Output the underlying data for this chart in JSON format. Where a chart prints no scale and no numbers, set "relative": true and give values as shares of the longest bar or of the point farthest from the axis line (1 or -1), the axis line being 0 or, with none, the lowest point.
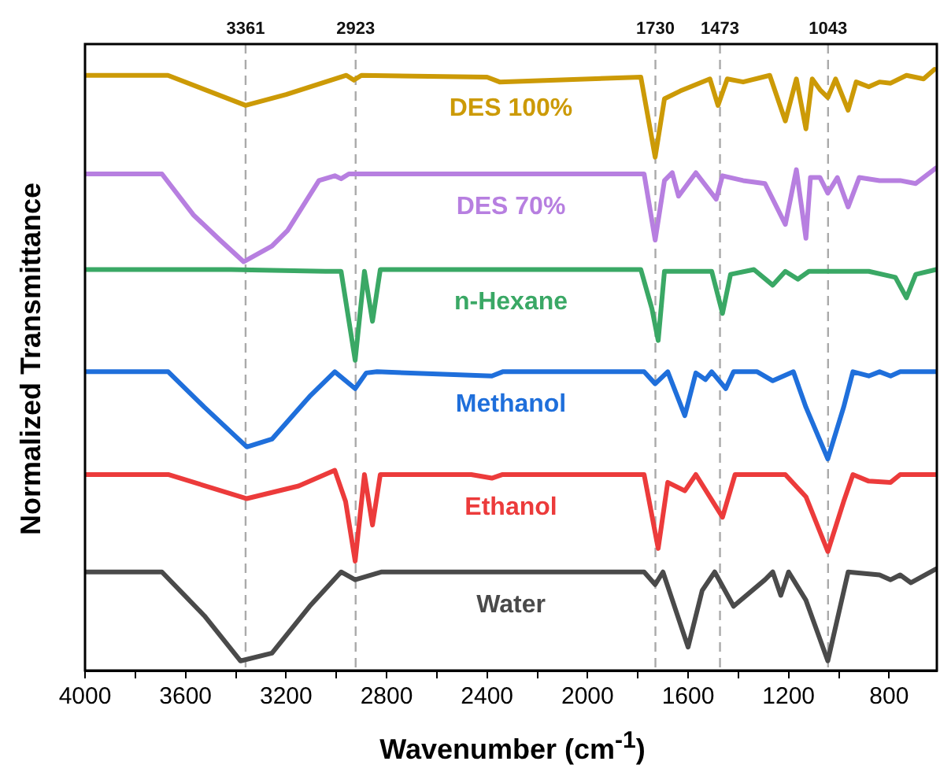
{
  "chart_data": {
    "type": "line",
    "relative": true,
    "xlabel": "Wavenumber (cm$^{-1}$)",
    "ylabel": "Normalized Transmittance",
    "xlim": [
      4000,
      610
    ],
    "xticks": [
      4000,
      {
        "value": 3800,
        "label": null
      },
      3600,
      {
        "value": 3400,
        "label": null
      },
      3200,
      {
        "value": 3000,
        "label": null
      },
      2800,
      {
        "value": 2600,
        "label": null
      },
      2400,
      {
        "value": 2200,
        "label": null
      },
      2000,
      {
        "value": 1800,
        "label": null
      },
      1600,
      {
        "value": 1400,
        "label": null
      },
      1200,
      {
        "value": 1000,
        "label": null
      },
      800
    ],
    "grid": false,
    "legend": false,
    "marker": "none",
    "line_style": "solid",
    "ref_lines": [
      {
        "axis": "x",
        "value": 3361,
        "label": "3361",
        "color": "#aaaaaa",
        "line_style": "dashed"
      },
      {
        "axis": "x",
        "value": 2923,
        "label": "2923",
        "color": "#aaaaaa",
        "line_style": "dashed"
      },
      {
        "axis": "x",
        "value": 1730,
        "label": "1730",
        "color": "#aaaaaa",
        "line_style": "dashed"
      },
      {
        "axis": "x",
        "value": 1473,
        "label": "1473",
        "color": "#aaaaaa",
        "line_style": "dashed"
      },
      {
        "axis": "x",
        "value": 1043,
        "label": "1043",
        "color": "#aaaaaa",
        "line_style": "dashed"
      }
    ],
    "series": [
      {
        "name": "DES 100%",
        "color": "#cc9a06",
        "x": [
          4000,
          3670,
          3361,
          3200,
          2960,
          2930,
          2900,
          2400,
          2350,
          1788,
          1731,
          1694,
          1631,
          1513,
          1481,
          1444,
          1381,
          1275,
          1213,
          1169,
          1131,
          1106,
          1075,
          1044,
          1013,
          963,
          931,
          881,
          838,
          794,
          731,
          663,
          619
        ],
        "values": [
          0.99,
          0.99,
          0.94,
          0.958,
          0.99,
          0.982,
          0.99,
          0.987,
          0.979,
          0.987,
          0.854,
          0.951,
          0.964,
          0.984,
          0.94,
          0.984,
          0.979,
          0.99,
          0.914,
          0.984,
          0.901,
          0.984,
          0.966,
          0.953,
          0.984,
          0.932,
          0.979,
          0.971,
          0.979,
          0.977,
          0.99,
          0.984,
          1.0
        ]
      },
      {
        "name": "DES 70%",
        "color": "#b77fe0",
        "x": [
          4000,
          3694,
          3569,
          3463,
          3369,
          3256,
          3194,
          3069,
          3006,
          2981,
          2950,
          1775,
          1731,
          1694,
          1663,
          1638,
          1569,
          1488,
          1463,
          1381,
          1294,
          1213,
          1169,
          1131,
          1113,
          1075,
          1044,
          1006,
          963,
          919,
          838,
          756,
          694,
          613
        ],
        "values": [
          0.826,
          0.826,
          0.758,
          0.716,
          0.68,
          0.706,
          0.732,
          0.815,
          0.823,
          0.818,
          0.826,
          0.826,
          0.716,
          0.815,
          0.828,
          0.789,
          0.828,
          0.784,
          0.823,
          0.815,
          0.81,
          0.742,
          0.833,
          0.719,
          0.82,
          0.82,
          0.794,
          0.82,
          0.771,
          0.82,
          0.815,
          0.815,
          0.81,
          0.836
        ]
      },
      {
        "name": "n-Hexane",
        "color": "#3aa865",
        "x": [
          4000,
          3419,
          3044,
          2981,
          2925,
          2888,
          2856,
          2825,
          1788,
          1744,
          1719,
          1694,
          1506,
          1463,
          1431,
          1338,
          1263,
          1213,
          1163,
          1119,
          1006,
          881,
          775,
          731,
          694,
          613
        ],
        "values": [
          0.667,
          0.667,
          0.664,
          0.664,
          0.516,
          0.664,
          0.581,
          0.667,
          0.667,
          0.602,
          0.549,
          0.664,
          0.664,
          0.594,
          0.659,
          0.667,
          0.641,
          0.664,
          0.651,
          0.664,
          0.664,
          0.664,
          0.654,
          0.62,
          0.659,
          0.667
        ]
      },
      {
        "name": "Methanol",
        "color": "#1f6fdb",
        "x": [
          4000,
          3669,
          3525,
          3356,
          3256,
          3106,
          3006,
          2925,
          2881,
          2838,
          2381,
          2338,
          1775,
          1731,
          1681,
          1613,
          1569,
          1531,
          1506,
          1450,
          1419,
          1325,
          1263,
          1181,
          1131,
          1044,
          981,
          944,
          881,
          838,
          794,
          756,
          613
        ],
        "values": [
          0.497,
          0.497,
          0.438,
          0.372,
          0.385,
          0.456,
          0.497,
          0.469,
          0.495,
          0.497,
          0.49,
          0.497,
          0.497,
          0.477,
          0.497,
          0.424,
          0.495,
          0.484,
          0.497,
          0.469,
          0.497,
          0.497,
          0.482,
          0.497,
          0.438,
          0.352,
          0.438,
          0.497,
          0.49,
          0.497,
          0.49,
          0.497,
          0.497
        ]
      },
      {
        "name": "Ethanol",
        "color": "#ec3b3b",
        "x": [
          4000,
          3669,
          3356,
          3150,
          3006,
          2963,
          2925,
          2888,
          2856,
          2825,
          2463,
          2381,
          2338,
          1775,
          1719,
          1681,
          1613,
          1569,
          1463,
          1413,
          1213,
          1131,
          1044,
          981,
          944,
          881,
          794,
          756,
          613
        ],
        "values": [
          0.326,
          0.326,
          0.286,
          0.307,
          0.333,
          0.281,
          0.182,
          0.326,
          0.242,
          0.326,
          0.326,
          0.32,
          0.326,
          0.326,
          0.203,
          0.313,
          0.299,
          0.326,
          0.255,
          0.326,
          0.326,
          0.289,
          0.198,
          0.281,
          0.326,
          0.315,
          0.313,
          0.326,
          0.326
        ]
      },
      {
        "name": "Water",
        "color": "#4a4a4a",
        "x": [
          4000,
          3694,
          3525,
          3381,
          3256,
          3106,
          2981,
          2925,
          2819,
          1775,
          1731,
          1700,
          1600,
          1544,
          1494,
          1419,
          1294,
          1263,
          1231,
          1200,
          1131,
          1044,
          963,
          838,
          794,
          756,
          713,
          613
        ],
        "values": [
          0.164,
          0.164,
          0.091,
          0.016,
          0.029,
          0.107,
          0.164,
          0.151,
          0.164,
          0.164,
          0.143,
          0.164,
          0.039,
          0.133,
          0.164,
          0.107,
          0.151,
          0.164,
          0.125,
          0.164,
          0.117,
          0.016,
          0.164,
          0.159,
          0.151,
          0.159,
          0.146,
          0.169
        ]
      }
    ]
  }
}
